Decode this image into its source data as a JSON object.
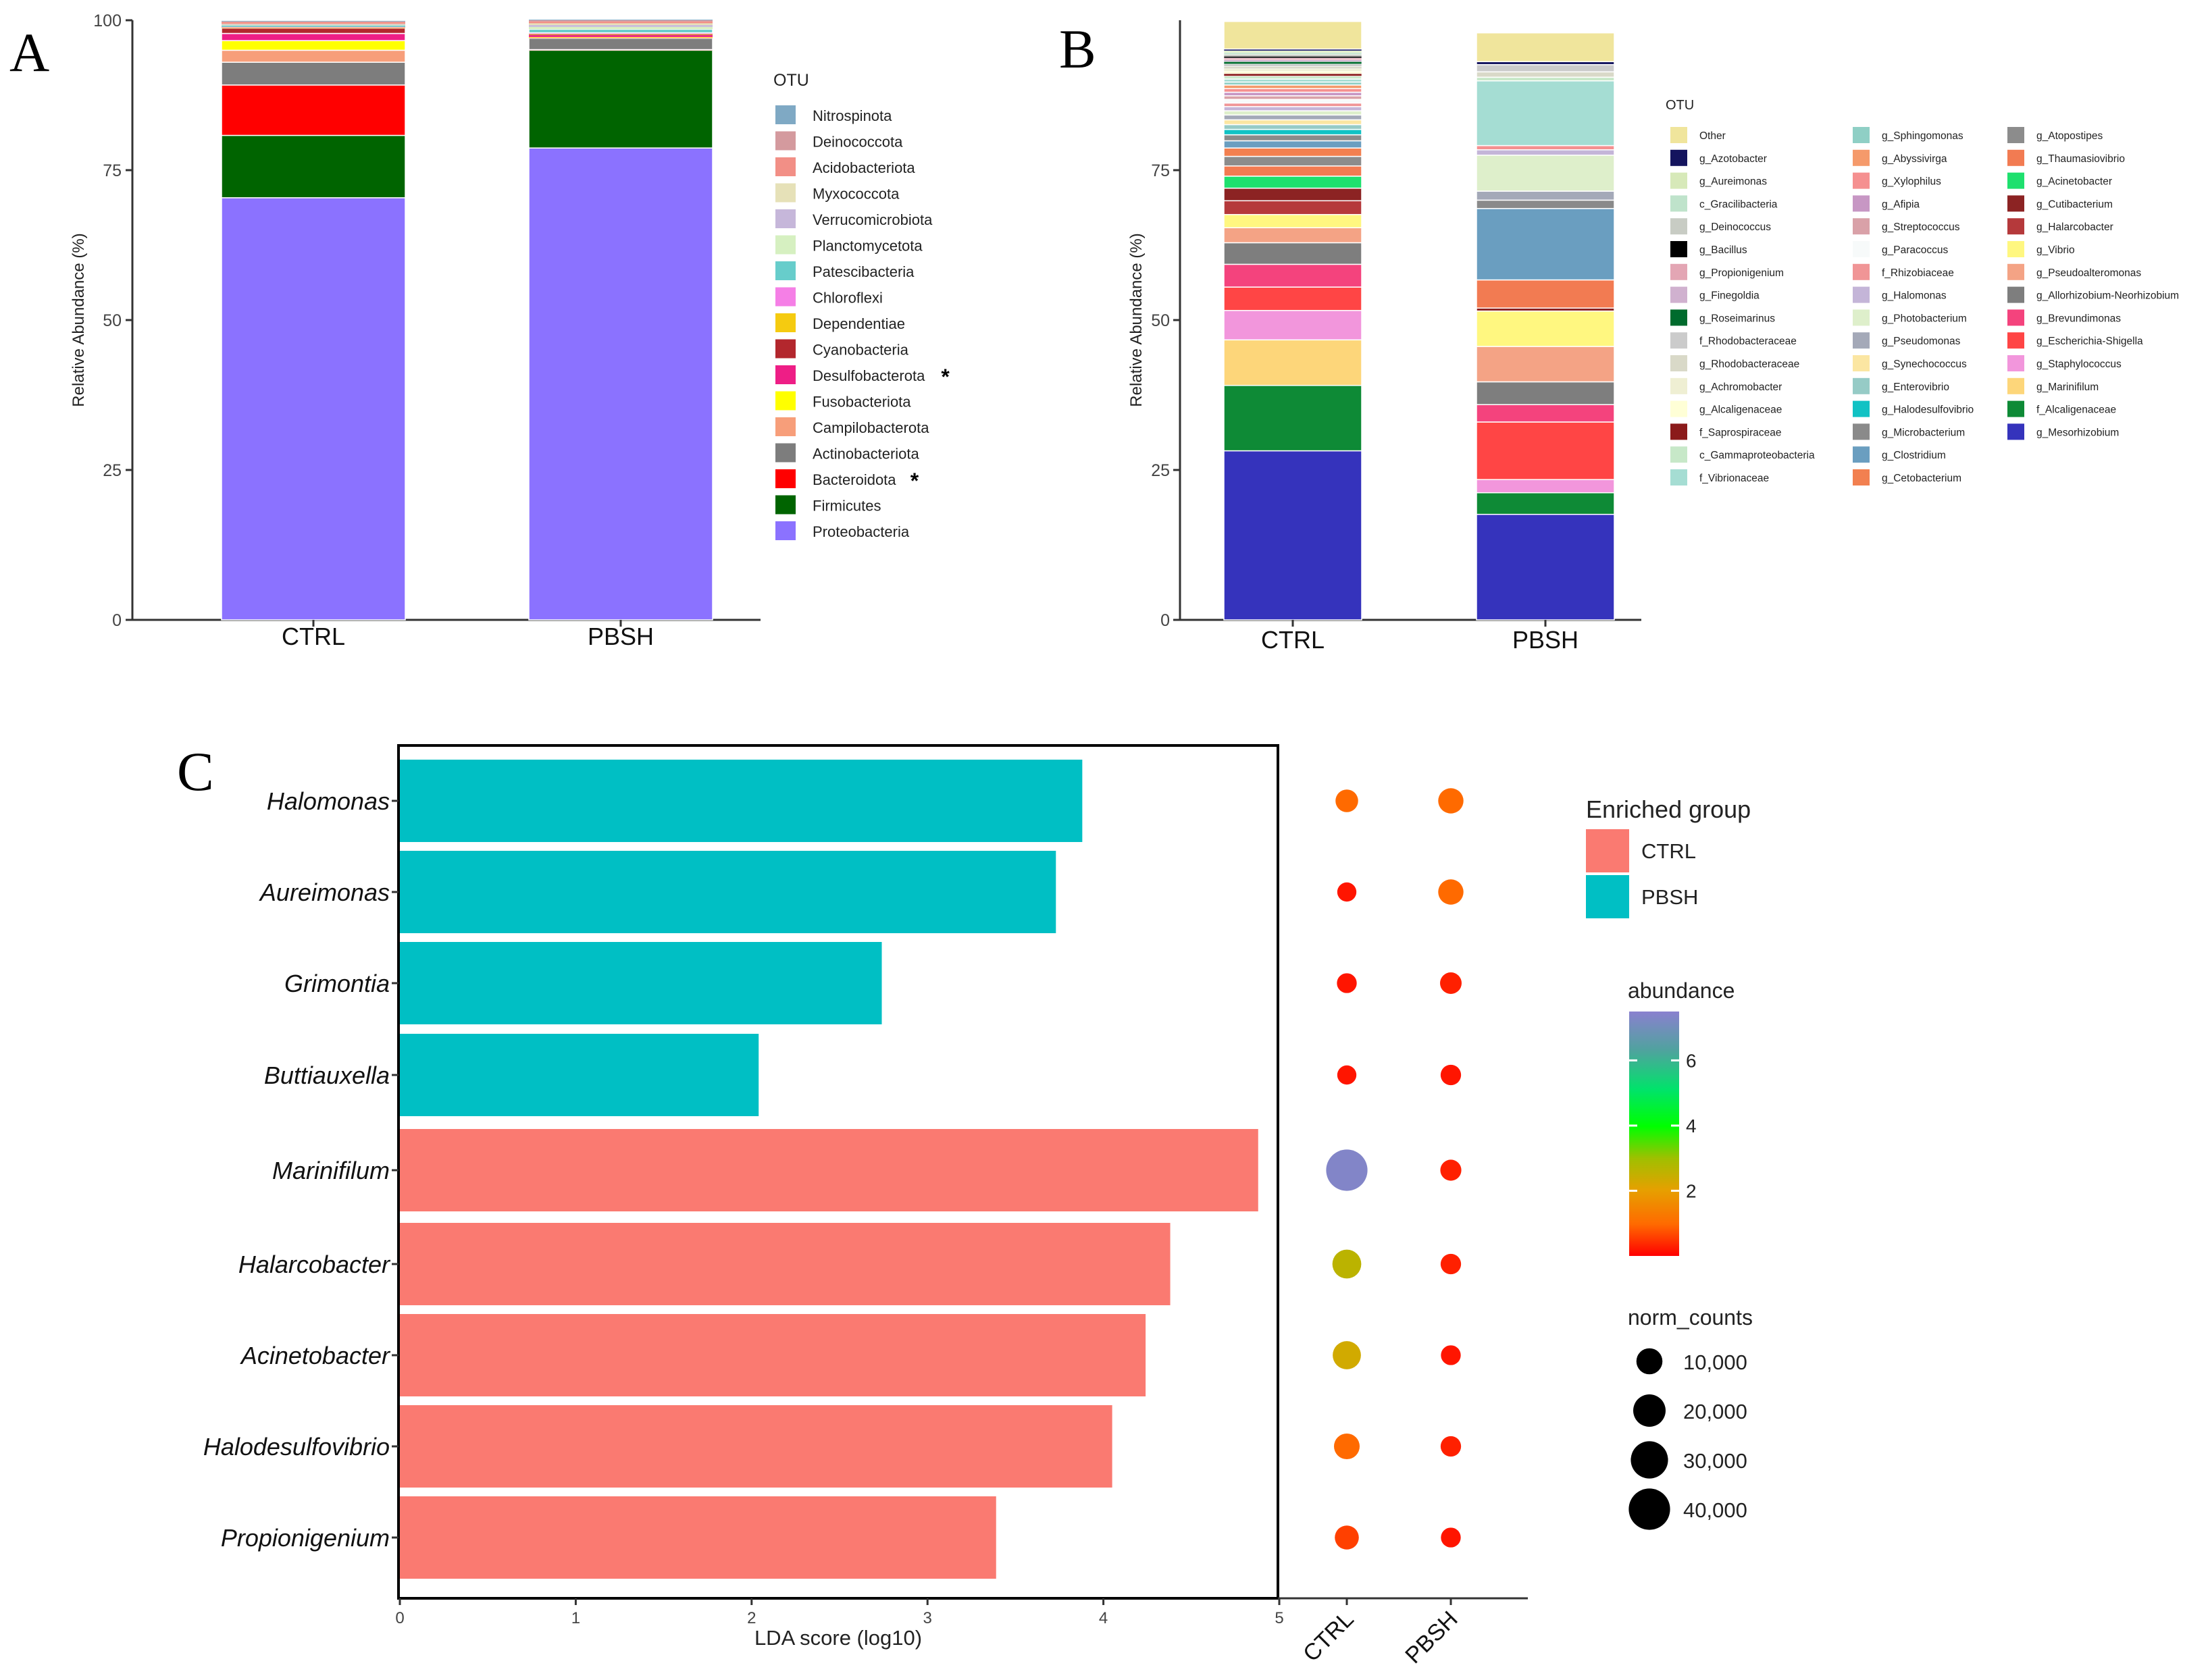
{
  "panels": {
    "a": "A",
    "b": "B",
    "c": "C"
  },
  "chart_data": [
    {
      "id": "A",
      "type": "bar",
      "stacked": true,
      "ylabel": "Relative Abundance (%)",
      "ylim": [
        0,
        100
      ],
      "yticks": [
        "0",
        "25",
        "50",
        "75",
        "100"
      ],
      "categories": [
        "CTRL",
        "PBSH"
      ],
      "legend_title": "OTU",
      "legend": [
        {
          "name": "Nitrospinota",
          "color": "#7FA9C4"
        },
        {
          "name": "Deinococcota",
          "color": "#D49A9E"
        },
        {
          "name": "Acidobacteriota",
          "color": "#F28F86"
        },
        {
          "name": "Myxococcota",
          "color": "#E6E1B8"
        },
        {
          "name": "Verrucomicrobiota",
          "color": "#C6B7DA"
        },
        {
          "name": "Planctomycetota",
          "color": "#D6F0C1"
        },
        {
          "name": "Patescibacteria",
          "color": "#67CDCB"
        },
        {
          "name": "Chloroflexi",
          "color": "#F57FE6"
        },
        {
          "name": "Dependentiae",
          "color": "#F5CB10"
        },
        {
          "name": "Cyanobacteria",
          "color": "#B3272D"
        },
        {
          "name": "Desulfobacterota",
          "color": "#EE1E86",
          "mark": "*"
        },
        {
          "name": "Fusobacteriota",
          "color": "#FFFF00"
        },
        {
          "name": "Campilobacterota",
          "color": "#F79E7A"
        },
        {
          "name": "Actinobacteriota",
          "color": "#7D7D7D"
        },
        {
          "name": "Bacteroidota",
          "color": "#FF0000",
          "mark": "*"
        },
        {
          "name": "Firmicutes",
          "color": "#006400"
        },
        {
          "name": "Proteobacteria",
          "color": "#8B72FF"
        }
      ],
      "series": [
        {
          "name": "Proteobacteria",
          "values": [
            70.4,
            78.7
          ]
        },
        {
          "name": "Firmicutes",
          "values": [
            10.4,
            16.3
          ]
        },
        {
          "name": "Bacteroidota",
          "values": [
            8.4,
            0.1
          ]
        },
        {
          "name": "Actinobacteriota",
          "values": [
            3.8,
            1.9
          ]
        },
        {
          "name": "Campilobacterota",
          "values": [
            2.0,
            0.1
          ]
        },
        {
          "name": "Fusobacteriota",
          "values": [
            1.6,
            0.1
          ]
        },
        {
          "name": "Desulfobacterota",
          "values": [
            1.2,
            0.3
          ]
        },
        {
          "name": "Cyanobacteria",
          "values": [
            0.9,
            0.1
          ]
        },
        {
          "name": "Dependentiae",
          "values": [
            0.1,
            0.1
          ]
        },
        {
          "name": "Chloroflexi",
          "values": [
            0.1,
            0.2
          ]
        },
        {
          "name": "Patescibacteria",
          "values": [
            0.2,
            0.6
          ]
        },
        {
          "name": "Planctomycetota",
          "values": [
            0.1,
            0.4
          ]
        },
        {
          "name": "Verrucomicrobiota",
          "values": [
            0.1,
            0.3
          ]
        },
        {
          "name": "Myxococcota",
          "values": [
            0.1,
            0.3
          ]
        },
        {
          "name": "Acidobacteriota",
          "values": [
            0.3,
            0.3
          ]
        },
        {
          "name": "Deinococcota",
          "values": [
            0.1,
            0.2
          ]
        },
        {
          "name": "Nitrospinota",
          "values": [
            0.1,
            0.1
          ]
        }
      ]
    },
    {
      "id": "B",
      "type": "bar",
      "stacked": true,
      "ylabel": "Relative Abundance (%)",
      "ylim": [
        0,
        100
      ],
      "yticks": [
        "0",
        "25",
        "50",
        "75"
      ],
      "categories": [
        "CTRL",
        "PBSH"
      ],
      "legend_title": "OTU",
      "legend": [
        {
          "name": "Other",
          "color": "#F0E59C"
        },
        {
          "name": "g_Azotobacter",
          "color": "#14145E"
        },
        {
          "name": "g_Aureimonas",
          "color": "#D7E9B9"
        },
        {
          "name": "c_Gracilibacteria",
          "color": "#BFE3CB"
        },
        {
          "name": "g_Deinococcus",
          "color": "#C8CCC4"
        },
        {
          "name": "g_Bacillus",
          "color": "#000000"
        },
        {
          "name": "g_Propionigenium",
          "color": "#E3A6B4"
        },
        {
          "name": "g_Finegoldia",
          "color": "#D0B1CF"
        },
        {
          "name": "g_Roseimarinus",
          "color": "#006B2D"
        },
        {
          "name": "f_Rhodobacteraceae",
          "color": "#CBCBCB"
        },
        {
          "name": "g_Rhodobacteraceae",
          "color": "#D9D9C8"
        },
        {
          "name": "g_Achromobacter",
          "color": "#EFEFD3"
        },
        {
          "name": "g_Alcaligenaceae",
          "color": "#FFFFD6"
        },
        {
          "name": "f_Saprospiraceae",
          "color": "#8B1A1A"
        },
        {
          "name": "c_Gammaproteobacteria",
          "color": "#C7E8C8"
        },
        {
          "name": "f_Vibrionaceae",
          "color": "#A5DDD3"
        },
        {
          "name": "g_Sphingomonas",
          "color": "#8FCFC5"
        },
        {
          "name": "g_Abyssivirga",
          "color": "#F59A6B"
        },
        {
          "name": "g_Xylophilus",
          "color": "#F59090"
        },
        {
          "name": "g_Afipia",
          "color": "#C797C4"
        },
        {
          "name": "g_Streptococcus",
          "color": "#D9A1A8"
        },
        {
          "name": "g_Paracoccus",
          "color": "#F7FAFA"
        },
        {
          "name": "f_Rhizobiaceae",
          "color": "#F09596"
        },
        {
          "name": "g_Halomonas",
          "color": "#C4B5D8"
        },
        {
          "name": "g_Photobacterium",
          "color": "#DEEFCB"
        },
        {
          "name": "g_Pseudomonas",
          "color": "#A4A9B8"
        },
        {
          "name": "g_Synechococcus",
          "color": "#FBE6A2"
        },
        {
          "name": "g_Enterovibrio",
          "color": "#96CBC6"
        },
        {
          "name": "g_Halodesulfovibrio",
          "color": "#11C2C4"
        },
        {
          "name": "g_Microbacterium",
          "color": "#8A8A8A"
        },
        {
          "name": "g_Clostridium",
          "color": "#6A9EC0"
        },
        {
          "name": "g_Cetobacterium",
          "color": "#F28050"
        },
        {
          "name": "g_Atopostipes",
          "color": "#8C8C8C"
        },
        {
          "name": "g_Thaumasiovibrio",
          "color": "#F27B52"
        },
        {
          "name": "g_Acinetobacter",
          "color": "#1EE06E"
        },
        {
          "name": "g_Cutibacterium",
          "color": "#8C2323"
        },
        {
          "name": "g_Halarcobacter",
          "color": "#B5393B"
        },
        {
          "name": "g_Vibrio",
          "color": "#FFF780"
        },
        {
          "name": "g_Pseudoalteromonas",
          "color": "#F4A385"
        },
        {
          "name": "g_Allorhizobium-Neorhizobium",
          "color": "#7E7E7E"
        },
        {
          "name": "g_Brevundimonas",
          "color": "#F4437D"
        },
        {
          "name": "g_Escherichia-Shigella",
          "color": "#FF4545"
        },
        {
          "name": "g_Staphylococcus",
          "color": "#F296DC"
        },
        {
          "name": "g_Marinifilum",
          "color": "#FDD67A"
        },
        {
          "name": "f_Alcaligenaceae",
          "color": "#0E8A36"
        },
        {
          "name": "g_Mesorhizobium",
          "color": "#3533BC"
        }
      ],
      "stacks": [
        {
          "category": "CTRL",
          "segments": [
            {
              "name": "g_Mesorhizobium",
              "value": 28.2
            },
            {
              "name": "f_Alcaligenaceae",
              "value": 10.9
            },
            {
              "name": "g_Marinifilum",
              "value": 7.6
            },
            {
              "name": "g_Staphylococcus",
              "value": 4.9
            },
            {
              "name": "g_Escherichia-Shigella",
              "value": 3.9
            },
            {
              "name": "g_Brevundimonas",
              "value": 3.8
            },
            {
              "name": "g_Allorhizobium-Neorhizobium",
              "value": 3.6
            },
            {
              "name": "g_Pseudoalteromonas",
              "value": 2.5
            },
            {
              "name": "g_Vibrio",
              "value": 2.2
            },
            {
              "name": "g_Halarcobacter",
              "value": 2.3
            },
            {
              "name": "g_Cutibacterium",
              "value": 2.1
            },
            {
              "name": "g_Acinetobacter",
              "value": 2.0
            },
            {
              "name": "g_Thaumasiovibrio",
              "value": 1.7
            },
            {
              "name": "g_Atopostipes",
              "value": 1.6
            },
            {
              "name": "g_Cetobacterium",
              "value": 1.4
            },
            {
              "name": "g_Clostridium",
              "value": 1.2
            },
            {
              "name": "g_Microbacterium",
              "value": 1.0
            },
            {
              "name": "g_Halodesulfovibrio",
              "value": 0.9
            },
            {
              "name": "g_Enterovibrio",
              "value": 0.8
            },
            {
              "name": "g_Synechococcus",
              "value": 0.8
            },
            {
              "name": "g_Pseudomonas",
              "value": 0.8
            },
            {
              "name": "g_Photobacterium",
              "value": 0.7
            },
            {
              "name": "g_Halomonas",
              "value": 0.7
            },
            {
              "name": "f_Rhizobiaceae",
              "value": 0.6
            },
            {
              "name": "g_Paracoccus",
              "value": 0.6
            },
            {
              "name": "g_Streptococcus",
              "value": 0.6
            },
            {
              "name": "g_Afipia",
              "value": 0.6
            },
            {
              "name": "g_Xylophilus",
              "value": 0.6
            },
            {
              "name": "g_Abyssivirga",
              "value": 0.6
            },
            {
              "name": "g_Sphingomonas",
              "value": 0.5
            },
            {
              "name": "f_Vibrionaceae",
              "value": 0.5
            },
            {
              "name": "c_Gammaproteobacteria",
              "value": 0.5
            },
            {
              "name": "f_Saprospiraceae",
              "value": 0.4
            },
            {
              "name": "g_Alcaligenaceae",
              "value": 0.4
            },
            {
              "name": "g_Achromobacter",
              "value": 0.4
            },
            {
              "name": "g_Rhodobacteraceae",
              "value": 0.4
            },
            {
              "name": "f_Rhodobacteraceae",
              "value": 0.4
            },
            {
              "name": "g_Roseimarinus",
              "value": 0.4
            },
            {
              "name": "g_Finegoldia",
              "value": 0.3
            },
            {
              "name": "g_Propionigenium",
              "value": 0.3
            },
            {
              "name": "g_Bacillus",
              "value": 0.3
            },
            {
              "name": "g_Deinococcus",
              "value": 0.3
            },
            {
              "name": "c_Gracilibacteria",
              "value": 0.3
            },
            {
              "name": "g_Aureimonas",
              "value": 0.3
            },
            {
              "name": "g_Azotobacter",
              "value": 0.3
            },
            {
              "name": "Other",
              "value": 4.6
            }
          ]
        },
        {
          "category": "PBSH",
          "segments": [
            {
              "name": "g_Mesorhizobium",
              "value": 17.6
            },
            {
              "name": "f_Alcaligenaceae",
              "value": 3.6
            },
            {
              "name": "g_Staphylococcus",
              "value": 2.2
            },
            {
              "name": "g_Escherichia-Shigella",
              "value": 9.6
            },
            {
              "name": "g_Brevundimonas",
              "value": 2.9
            },
            {
              "name": "g_Allorhizobium-Neorhizobium",
              "value": 3.8
            },
            {
              "name": "g_Pseudoalteromonas",
              "value": 5.9
            },
            {
              "name": "g_Vibrio",
              "value": 5.9
            },
            {
              "name": "g_Cutibacterium",
              "value": 0.5
            },
            {
              "name": "g_Thaumasiovibrio",
              "value": 4.7
            },
            {
              "name": "g_Clostridium",
              "value": 11.9
            },
            {
              "name": "g_Microbacterium",
              "value": 1.4
            },
            {
              "name": "g_Pseudomonas",
              "value": 1.5
            },
            {
              "name": "g_Photobacterium",
              "value": 6.0
            },
            {
              "name": "g_Halomonas",
              "value": 0.9
            },
            {
              "name": "g_Xylophilus",
              "value": 0.7
            },
            {
              "name": "f_Vibrionaceae",
              "value": 10.8
            },
            {
              "name": "c_Gammaproteobacteria",
              "value": 0.6
            },
            {
              "name": "g_Rhodobacteraceae",
              "value": 0.9
            },
            {
              "name": "f_Rhodobacteraceae",
              "value": 1.2
            },
            {
              "name": "g_Azotobacter",
              "value": 0.5
            },
            {
              "name": "Other",
              "value": 4.8
            }
          ]
        }
      ]
    },
    {
      "id": "C",
      "type": "bar",
      "orientation": "horizontal",
      "xlabel": "LDA score (log10)",
      "xlim": [
        0,
        5
      ],
      "xticks": [
        "0",
        "1",
        "2",
        "3",
        "4",
        "5"
      ],
      "categories": [
        "Halomonas",
        "Aureimonas",
        "Grimontia",
        "Buttiauxella",
        "Marinifilum",
        "Halarcobacter",
        "Acinetobacter",
        "Halodesulfovibrio",
        "Propionigenium"
      ],
      "values": [
        3.88,
        3.73,
        2.74,
        2.04,
        4.88,
        4.38,
        4.24,
        4.05,
        3.39
      ],
      "groups": [
        "PBSH",
        "PBSH",
        "PBSH",
        "PBSH",
        "CTRL",
        "CTRL",
        "CTRL",
        "CTRL",
        "CTRL"
      ],
      "group_colors": {
        "CTRL": "#FA7A71",
        "PBSH": "#00BFC4"
      },
      "legend_title": "Enriched group",
      "legend": [
        {
          "name": "CTRL",
          "color": "#FA7A71"
        },
        {
          "name": "PBSH",
          "color": "#00BFC4"
        }
      ],
      "dot_columns": [
        "CTRL",
        "PBSH"
      ],
      "dots": {
        "CTRL": {
          "abundance": [
            1.0,
            0.2,
            0.2,
            0.2,
            7.3,
            2.6,
            2.3,
            1.0,
            0.6
          ],
          "norm_counts": [
            6000,
            3000,
            3500,
            3000,
            40000,
            14000,
            13000,
            9500,
            7500
          ]
        },
        "PBSH": {
          "abundance": [
            1.0,
            1.0,
            0.3,
            0.2,
            0.3,
            0.3,
            0.2,
            0.3,
            0.2
          ],
          "norm_counts": [
            9000,
            9000,
            5000,
            4000,
            4500,
            4000,
            3500,
            4000,
            3500
          ]
        }
      },
      "abundance_legend": {
        "title": "abundance",
        "ticks": [
          "2",
          "4",
          "6"
        ],
        "tick_values": [
          2,
          4,
          6
        ],
        "range": [
          0,
          7.5
        ]
      },
      "size_legend": {
        "title": "norm_counts",
        "labels": [
          "10,000",
          "20,000",
          "30,000",
          "40,000"
        ],
        "values": [
          10000,
          20000,
          30000,
          40000
        ]
      }
    }
  ]
}
